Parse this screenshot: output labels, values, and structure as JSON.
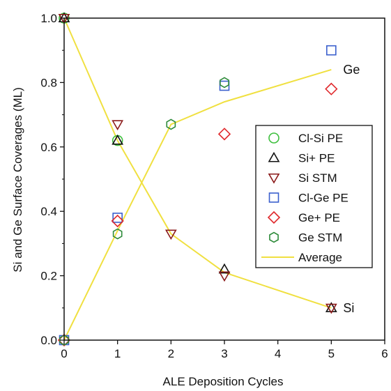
{
  "chart_data": {
    "type": "scatter",
    "xlabel": "ALE Deposition Cycles",
    "ylabel": "Si and Ge Surface Coverages (ML)",
    "xlim": [
      0,
      6
    ],
    "ylim": [
      0,
      1.0
    ],
    "xticks": [
      0,
      1,
      2,
      3,
      4,
      5,
      6
    ],
    "yticks": [
      0.0,
      0.2,
      0.4,
      0.6,
      0.8,
      1.0
    ],
    "xtick_labels": [
      "0",
      "1",
      "2",
      "3",
      "4",
      "5",
      "6"
    ],
    "ytick_labels": [
      "0.0",
      "0.2",
      "0.4",
      "0.6",
      "0.8",
      "1.0"
    ],
    "grid": false,
    "legend_position": "right",
    "curve_labels": {
      "ge": "Ge",
      "si": "Si"
    },
    "series": [
      {
        "name": "Cl-Si PE",
        "marker": "circle",
        "color": "#3dbf3d",
        "points": [
          [
            0,
            1.0
          ],
          [
            1,
            0.62
          ]
        ]
      },
      {
        "name": "Si+ PE",
        "marker": "triangle-up",
        "color": "#111111",
        "points": [
          [
            0,
            1.0
          ],
          [
            1,
            0.62
          ],
          [
            3,
            0.22
          ],
          [
            5,
            0.1
          ]
        ]
      },
      {
        "name": "Si STM",
        "marker": "triangle-down",
        "color": "#8b1a1a",
        "points": [
          [
            0,
            1.0
          ],
          [
            1,
            0.67
          ],
          [
            2,
            0.33
          ],
          [
            3,
            0.2
          ],
          [
            5,
            0.1
          ]
        ]
      },
      {
        "name": "Cl-Ge PE",
        "marker": "square",
        "color": "#3a5fcd",
        "points": [
          [
            0,
            0.0
          ],
          [
            1,
            0.38
          ],
          [
            3,
            0.79
          ],
          [
            5,
            0.9
          ]
        ]
      },
      {
        "name": "Ge+ PE",
        "marker": "diamond",
        "color": "#e0282b",
        "points": [
          [
            0,
            0.0
          ],
          [
            1,
            0.37
          ],
          [
            3,
            0.64
          ],
          [
            5,
            0.78
          ]
        ]
      },
      {
        "name": "Ge STM",
        "marker": "hexagon",
        "color": "#2e8b3a",
        "points": [
          [
            0,
            0.0
          ],
          [
            1,
            0.33
          ],
          [
            2,
            0.67
          ],
          [
            3,
            0.8
          ]
        ]
      }
    ],
    "average": {
      "name": "Average",
      "color": "#f0e040",
      "lines": [
        {
          "label": "Si",
          "points": [
            [
              0,
              1.0
            ],
            [
              1,
              0.62
            ],
            [
              2,
              0.33
            ],
            [
              3,
              0.21
            ],
            [
              5,
              0.1
            ]
          ]
        },
        {
          "label": "Ge",
          "points": [
            [
              0,
              0.0
            ],
            [
              1,
              0.34
            ],
            [
              2,
              0.67
            ],
            [
              3,
              0.74
            ],
            [
              5,
              0.84
            ]
          ]
        }
      ]
    }
  }
}
